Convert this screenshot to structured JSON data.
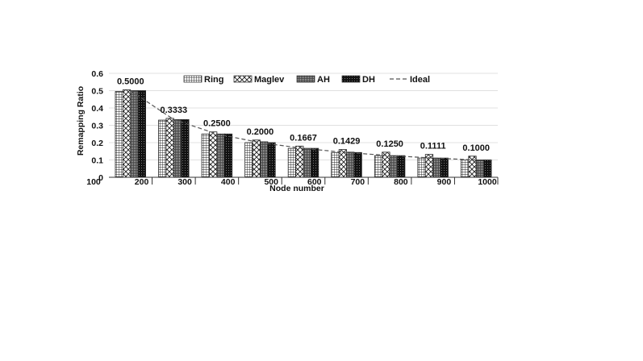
{
  "chart_data": {
    "type": "bar",
    "title": "",
    "xlabel": "Node number",
    "ylabel": "Remapping Ratio",
    "ylim": [
      0,
      0.6
    ],
    "yticks": [
      "0",
      "0.1",
      "0.2",
      "0.3",
      "0.4",
      "0.5",
      "0.6"
    ],
    "xtick_labels": [
      "100",
      "200",
      "300",
      "400",
      "500",
      "600",
      "700",
      "800",
      "900",
      "1000"
    ],
    "grid": "horizontal",
    "legend_position": "top",
    "series": [
      {
        "name": "Ring",
        "pattern": "grid",
        "values": [
          0.495,
          0.33,
          0.25,
          0.2,
          0.167,
          0.143,
          0.125,
          0.111,
          0.1
        ]
      },
      {
        "name": "Maglev",
        "pattern": "diamond",
        "values": [
          0.505,
          0.34,
          0.262,
          0.215,
          0.18,
          0.16,
          0.145,
          0.132,
          0.122
        ]
      },
      {
        "name": "AH",
        "pattern": "dots",
        "values": [
          0.5,
          0.333,
          0.25,
          0.205,
          0.167,
          0.145,
          0.125,
          0.111,
          0.1
        ]
      },
      {
        "name": "DH",
        "pattern": "dark",
        "values": [
          0.5,
          0.333,
          0.25,
          0.2,
          0.167,
          0.143,
          0.125,
          0.111,
          0.1
        ]
      }
    ],
    "ideal": {
      "name": "Ideal",
      "values": [
        0.5,
        0.3333,
        0.25,
        0.2,
        0.1667,
        0.1429,
        0.125,
        0.1111,
        0.1
      ]
    },
    "annotations": [
      "0.5000",
      "0.3333",
      "0.2500",
      "0.2000",
      "0.1667",
      "0.1429",
      "0.1250",
      "0.1111",
      "0.1000"
    ]
  }
}
